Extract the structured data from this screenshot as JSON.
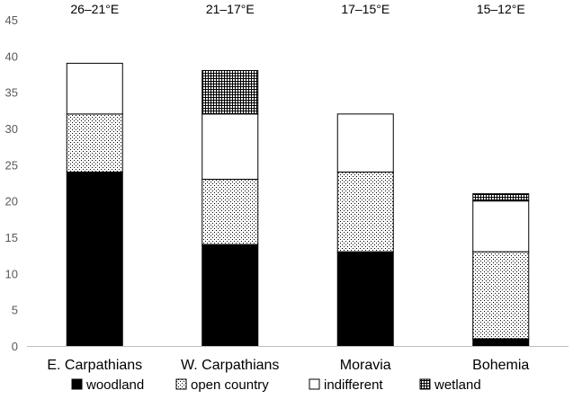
{
  "chart_data": {
    "type": "bar",
    "stacked": true,
    "categories": [
      "E. Carpathians",
      "W. Carpathians",
      "Moravia",
      "Bohemia"
    ],
    "longitude_ranges": [
      "26–21°E",
      "21–17°E",
      "17–15°E",
      "15–12°E"
    ],
    "series": [
      {
        "name": "woodland",
        "values": [
          24,
          14,
          13,
          1
        ],
        "pattern": "solid"
      },
      {
        "name": "open country",
        "values": [
          8,
          9,
          11,
          12
        ],
        "pattern": "dots"
      },
      {
        "name": "indifferent",
        "values": [
          7,
          9,
          8,
          7
        ],
        "pattern": "white"
      },
      {
        "name": "wetland",
        "values": [
          0,
          6,
          0,
          1
        ],
        "pattern": "grid"
      }
    ],
    "ylim": [
      0,
      45
    ],
    "yticks": [
      0,
      5,
      10,
      15,
      20,
      25,
      30,
      35,
      40,
      45
    ],
    "xlabel": "",
    "ylabel": "",
    "title": "",
    "legend_position": "bottom",
    "colors": {
      "bar_fill": "#000000",
      "outline": "#000000",
      "axis": "#bfbfbf",
      "tick_text": "#595959"
    }
  }
}
